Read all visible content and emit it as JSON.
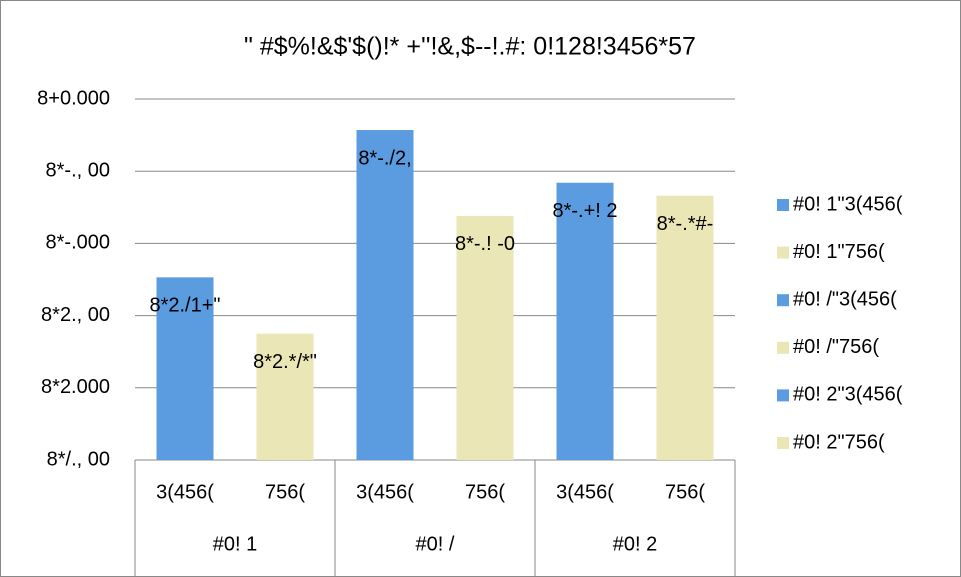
{
  "chart_data": {
    "type": "bar",
    "title": "\"  #$%!&$'$()!* +''!&,$--!.#: 0!128!3456*57",
    "groups": [
      "#0! 1",
      "#0! /",
      "#0! 2"
    ],
    "categories": [
      "3(456(",
      "756(",
      "3(456(",
      "756(",
      "3(456(",
      "756("
    ],
    "series": [
      {
        "name": "#0! 1\"3(456(",
        "color": "#5b9be0",
        "values": [
          2.53,
          null,
          null,
          null,
          null,
          null
        ],
        "value_labels": [
          "8*2./1+\"",
          null,
          null,
          null,
          null,
          null
        ]
      },
      {
        "name": "#0! 1\"756(",
        "color": "#ebe6b5",
        "values": [
          null,
          1.75,
          null,
          null,
          null,
          null
        ],
        "value_labels": [
          null,
          "8*2.*/*\"",
          null,
          null,
          null,
          null
        ]
      },
      {
        "name": "#0! /\"3(456(",
        "color": "#5b9be0",
        "values": [
          null,
          null,
          4.57,
          null,
          null,
          null
        ],
        "value_labels": [
          null,
          null,
          "8*-./2,",
          null,
          null,
          null
        ]
      },
      {
        "name": "#0! /\"756(",
        "color": "#ebe6b5",
        "values": [
          null,
          null,
          null,
          3.38,
          null,
          null
        ],
        "value_labels": [
          null,
          null,
          null,
          "8*-.! -0",
          null,
          null
        ]
      },
      {
        "name": "#0! 2\"3(456(",
        "color": "#5b9be0",
        "values": [
          null,
          null,
          null,
          null,
          3.84,
          null
        ],
        "value_labels": [
          null,
          null,
          null,
          null,
          "8*-.+! 2",
          null
        ]
      },
      {
        "name": "#0! 2\"756(",
        "color": "#ebe6b5",
        "values": [
          null,
          null,
          null,
          null,
          null,
          3.66
        ],
        "value_labels": [
          null,
          null,
          null,
          null,
          null,
          "8*-.*#-"
        ]
      }
    ],
    "ylim": [
      0,
      5
    ],
    "yticks": [
      {
        "value": 0,
        "label": "8*/., 00"
      },
      {
        "value": 1,
        "label": "8*2.000"
      },
      {
        "value": 2,
        "label": "8*2., 00"
      },
      {
        "value": 3,
        "label": "8*-.000"
      },
      {
        "value": 4,
        "label": "8*-., 00"
      },
      {
        "value": 5,
        "label": "8+0.000"
      }
    ],
    "grid": true,
    "legend": "right"
  }
}
